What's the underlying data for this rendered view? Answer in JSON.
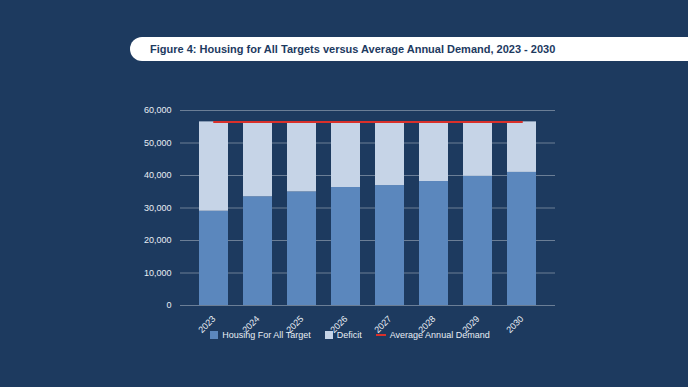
{
  "chart_data": {
    "type": "bar",
    "title": "Figure 4: Housing for All Targets versus Average Annual Demand, 2023 - 2030",
    "categories": [
      "2023",
      "2024",
      "2025",
      "2026",
      "2027",
      "2028",
      "2029",
      "2030"
    ],
    "series": [
      {
        "name": "Housing For All Target",
        "color": "#5b87bd",
        "values": [
          29000,
          33450,
          34950,
          36300,
          36900,
          38150,
          39750,
          40950
        ]
      },
      {
        "name": "Deficit",
        "color": "#c6d4e7",
        "values": [
          27500,
          23050,
          21550,
          20200,
          19600,
          18350,
          16750,
          15550
        ]
      },
      {
        "name": "Average Annual Demand",
        "type": "line",
        "color": "#d9302a",
        "values": [
          56500,
          56500,
          56500,
          56500,
          56500,
          56500,
          56500,
          56500
        ]
      }
    ],
    "stacked": true,
    "ylim": [
      0,
      60000
    ],
    "yticks": [
      0,
      {
        "value": 10000,
        "label": "10,000"
      },
      {
        "value": 20000,
        "label": "20,000"
      },
      {
        "value": 30000,
        "label": "30,000"
      },
      {
        "value": 40000,
        "label": "40,000"
      },
      {
        "value": 50000,
        "label": "50,000"
      },
      {
        "value": 60000,
        "label": "60,000"
      }
    ],
    "grid": true,
    "legend": "bottom"
  }
}
